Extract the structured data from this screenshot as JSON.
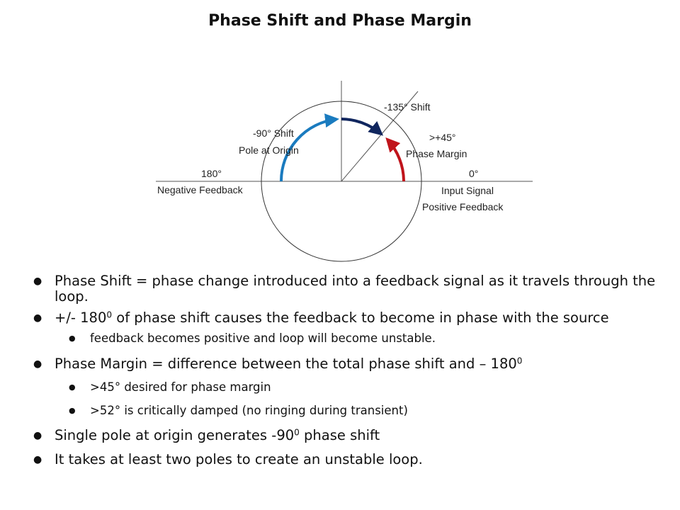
{
  "title": "Phase Shift and Phase Margin",
  "diagram": {
    "label_180": "180°",
    "label_negative_feedback": "Negative Feedback",
    "label_90_shift": "-90° Shift",
    "label_pole_origin": "Pole at Origin",
    "label_135_shift": "-135° Shift",
    "label_45": ">+45°",
    "label_phase_margin": "Phase Margin",
    "label_0": "0°",
    "label_input_signal": "Input Signal",
    "label_positive_feedback": "Positive Feedback",
    "colors": {
      "blue_arc": "#1a7bbf",
      "navy_arc": "#10265e",
      "red_arc": "#c0141b"
    }
  },
  "bullets": {
    "b1": "Phase Shift = phase change introduced into a feedback signal as it travels through the loop.",
    "b2_pre": "+/- 180",
    "b2_sup": "0",
    "b2_post": " of phase shift causes the feedback to become in phase with the source",
    "b2_sub1": "feedback becomes positive and loop will become unstable.",
    "b3_pre": "Phase Margin = difference between the total phase shift and – 180",
    "b3_sup": "0",
    "b3_sub1": ">45° desired for phase margin",
    "b3_sub2": ">52° is critically damped (no ringing during transient)",
    "b4_pre": "Single pole at origin generates -90",
    "b4_sup": "0",
    "b4_post": " phase shift",
    "b5": "It takes at least two poles to create an unstable loop."
  }
}
